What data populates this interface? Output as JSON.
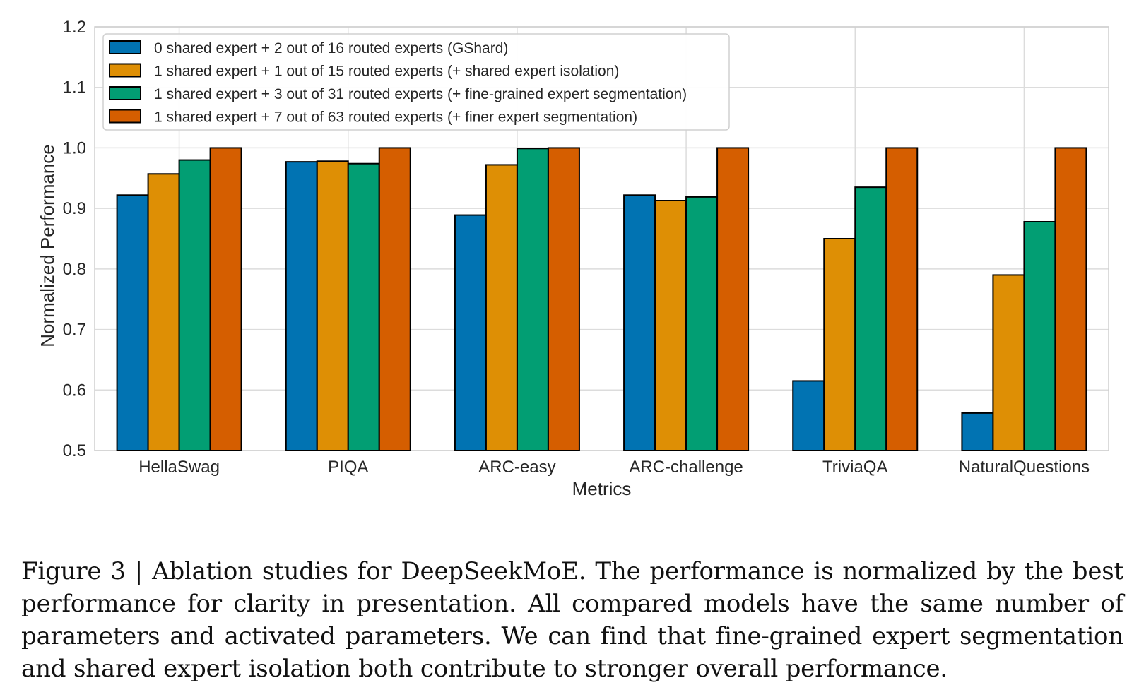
{
  "chart_data": {
    "type": "bar",
    "xlabel": "Metrics",
    "ylabel": "Normalized Performance",
    "ylim": [
      0.5,
      1.2
    ],
    "yticks": [
      "0.5",
      "0.6",
      "0.7",
      "0.8",
      "0.9",
      "1.0",
      "1.1",
      "1.2"
    ],
    "grid": true,
    "legend_position": "top-left",
    "categories": [
      "HellaSwag",
      "PIQA",
      "ARC-easy",
      "ARC-challenge",
      "TriviaQA",
      "NaturalQuestions"
    ],
    "series": [
      {
        "name": "0 shared expert + 2 out of 16 routed experts (GShard)",
        "color": "#0173b2",
        "values": [
          0.922,
          0.977,
          0.889,
          0.922,
          0.615,
          0.562
        ]
      },
      {
        "name": "1 shared expert + 1 out of 15 routed experts (+ shared expert isolation)",
        "color": "#de8f05",
        "values": [
          0.957,
          0.978,
          0.972,
          0.913,
          0.85,
          0.79
        ]
      },
      {
        "name": "1 shared expert + 3 out of 31 routed experts (+ fine-grained expert segmentation)",
        "color": "#029e73",
        "values": [
          0.98,
          0.974,
          0.999,
          0.919,
          0.935,
          0.878
        ]
      },
      {
        "name": "1 shared expert + 7 out of 63 routed experts (+ finer expert segmentation)",
        "color": "#d55e00",
        "values": [
          1.0,
          1.0,
          1.0,
          1.0,
          1.0,
          1.0
        ]
      }
    ]
  },
  "caption": "Figure 3 | Ablation studies for DeepSeekMoE. The performance is normalized by the best performance for clarity in presentation. All compared models have the same number of parameters and activated parameters. We can find that fine-grained expert segmentation and shared expert isolation both contribute to stronger overall performance."
}
